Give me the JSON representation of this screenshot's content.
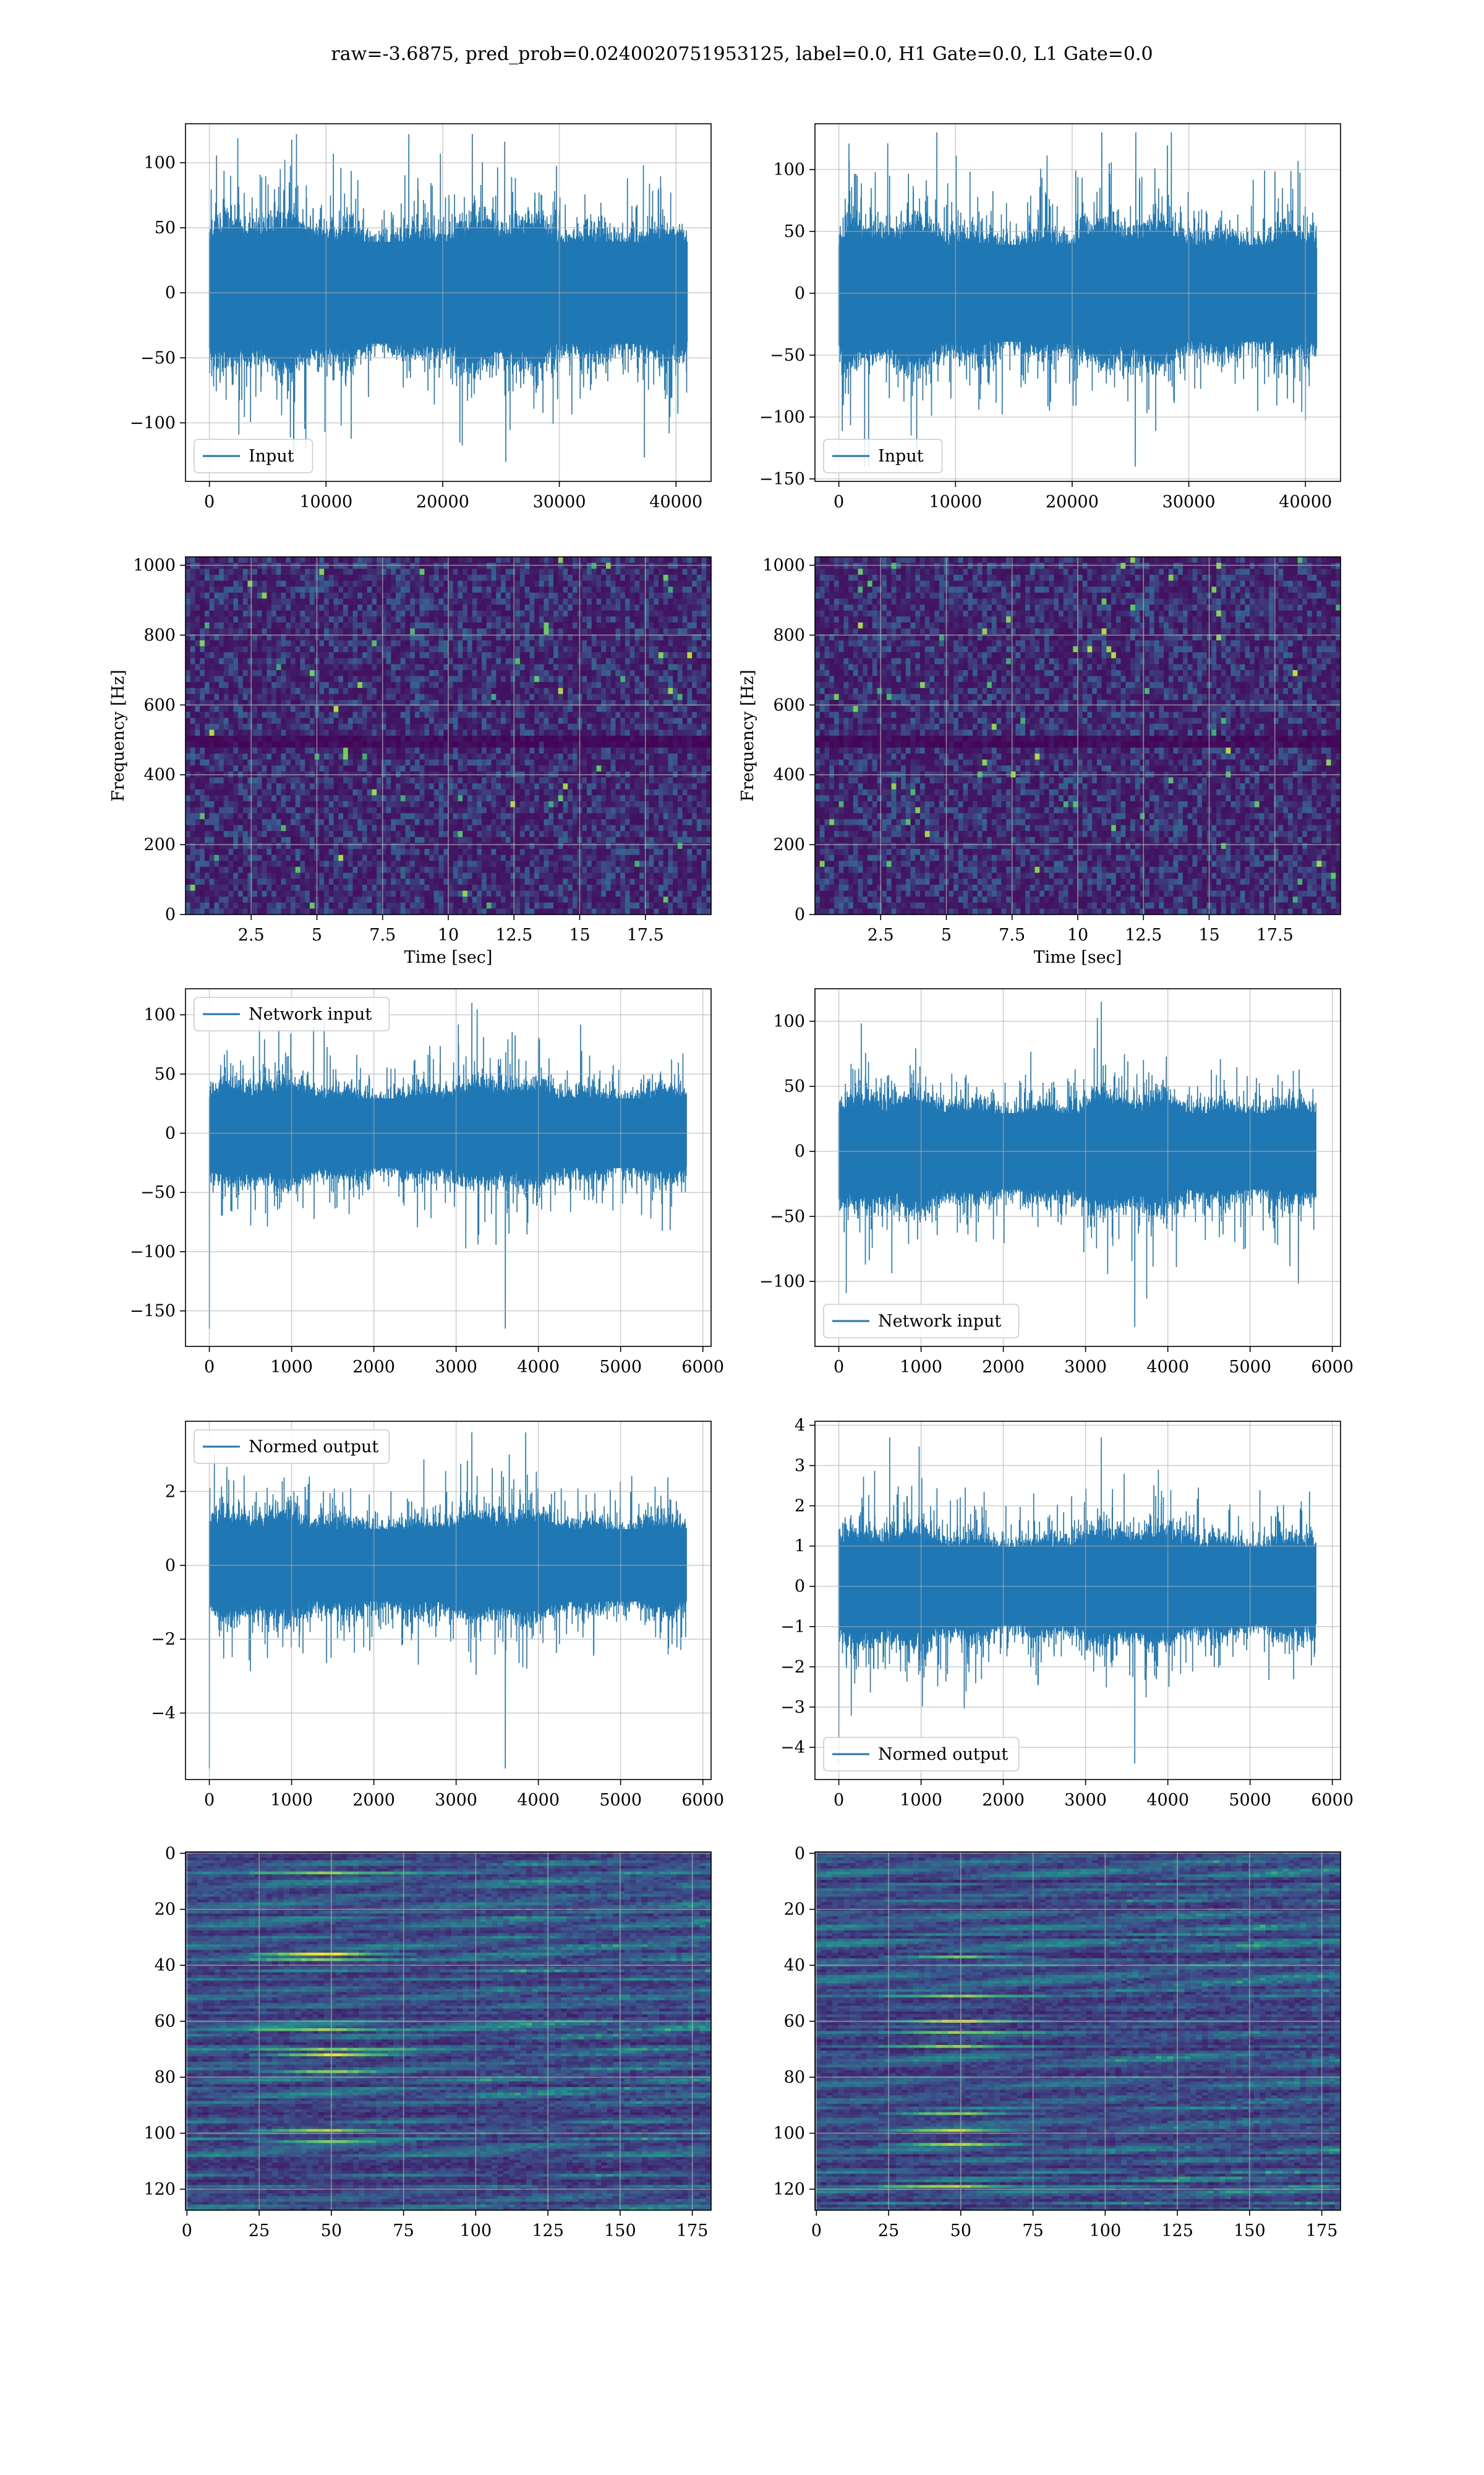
{
  "figure": {
    "title": "raw=-3.6875, pred_prob=0.0240020751953125, label=0.0, H1 Gate=0.0, L1 Gate=0.0"
  },
  "colors": {
    "line": "#1f77b4",
    "grid": "#b0b0b0",
    "viridis": [
      "#440154",
      "#3b528b",
      "#21918c",
      "#5ec962",
      "#fde725"
    ]
  },
  "chart_data": [
    {
      "id": "h1-input",
      "type": "line",
      "panel": {
        "row": 0,
        "col": 0
      },
      "title": "",
      "xlabel": "",
      "ylabel": "",
      "xlim": [
        -2048,
        43008
      ],
      "ylim": [
        -145,
        130
      ],
      "xticks": [
        0,
        10000,
        20000,
        30000,
        40000
      ],
      "yticks": [
        -100,
        -50,
        0,
        50,
        100
      ],
      "series": [
        {
          "name": "Input",
          "n_points": 40960,
          "center": 0,
          "band": 40,
          "max": 122,
          "min": -130
        }
      ],
      "legend": {
        "position": "lower-left",
        "entries": [
          "Input"
        ]
      },
      "grid": true
    },
    {
      "id": "l1-input",
      "type": "line",
      "panel": {
        "row": 0,
        "col": 1
      },
      "title": "",
      "xlabel": "",
      "ylabel": "",
      "xlim": [
        -2048,
        43008
      ],
      "ylim": [
        -152,
        137
      ],
      "xticks": [
        0,
        10000,
        20000,
        30000,
        40000
      ],
      "yticks": [
        -150,
        -100,
        -50,
        0,
        50,
        100
      ],
      "series": [
        {
          "name": "Input",
          "n_points": 40960,
          "center": 0,
          "band": 40,
          "max": 130,
          "min": -140
        }
      ],
      "legend": {
        "position": "lower-left",
        "entries": [
          "Input"
        ]
      },
      "grid": true
    },
    {
      "id": "h1-spectrogram",
      "type": "heatmap",
      "panel": {
        "row": 1,
        "col": 0
      },
      "xlabel": "Time [sec]",
      "ylabel": "Frequency [Hz]",
      "xlim": [
        0,
        20
      ],
      "ylim": [
        0,
        1024
      ],
      "xticks": [
        2.5,
        5.0,
        7.5,
        10.0,
        12.5,
        15.0,
        17.5
      ],
      "yticks": [
        0,
        200,
        400,
        600,
        800,
        1000
      ],
      "dark_band_hz": 500,
      "grid": true
    },
    {
      "id": "l1-spectrogram",
      "type": "heatmap",
      "panel": {
        "row": 1,
        "col": 1
      },
      "xlabel": "Time [sec]",
      "ylabel": "Frequency [Hz]",
      "xlim": [
        0,
        20
      ],
      "ylim": [
        0,
        1024
      ],
      "xticks": [
        2.5,
        5.0,
        7.5,
        10.0,
        12.5,
        15.0,
        17.5
      ],
      "yticks": [
        0,
        200,
        400,
        600,
        800,
        1000
      ],
      "dark_band_hz": 500,
      "grid": true
    },
    {
      "id": "h1-network-input",
      "type": "line",
      "panel": {
        "row": 2,
        "col": 0
      },
      "xlim": [
        -290,
        6100
      ],
      "ylim": [
        -180,
        122
      ],
      "xticks": [
        0,
        1000,
        2000,
        3000,
        4000,
        5000,
        6000
      ],
      "yticks": [
        -150,
        -100,
        -50,
        0,
        50,
        100
      ],
      "series": [
        {
          "name": "Network input",
          "n_points": 5800,
          "center": 0,
          "band": 30,
          "max": 110,
          "min": -165
        }
      ],
      "legend": {
        "position": "upper-left",
        "entries": [
          "Network input"
        ]
      },
      "grid": true
    },
    {
      "id": "l1-network-input",
      "type": "line",
      "panel": {
        "row": 2,
        "col": 1
      },
      "xlim": [
        -290,
        6100
      ],
      "ylim": [
        -150,
        125
      ],
      "xticks": [
        0,
        1000,
        2000,
        3000,
        4000,
        5000,
        6000
      ],
      "yticks": [
        -100,
        -50,
        0,
        50,
        100
      ],
      "series": [
        {
          "name": "Network input",
          "n_points": 5800,
          "center": 0,
          "band": 30,
          "max": 115,
          "min": -135
        }
      ],
      "legend": {
        "position": "lower-left",
        "entries": [
          "Network input"
        ]
      },
      "grid": true
    },
    {
      "id": "h1-normed-output",
      "type": "line",
      "panel": {
        "row": 3,
        "col": 0
      },
      "xlim": [
        -290,
        6100
      ],
      "ylim": [
        -5.8,
        3.9
      ],
      "xticks": [
        0,
        1000,
        2000,
        3000,
        4000,
        5000,
        6000
      ],
      "yticks": [
        -4,
        -2,
        0,
        2
      ],
      "series": [
        {
          "name": "Normed output",
          "n_points": 5800,
          "center": 0,
          "band": 1.0,
          "max": 3.6,
          "min": -5.5
        }
      ],
      "legend": {
        "position": "upper-left",
        "entries": [
          "Normed output"
        ]
      },
      "grid": true
    },
    {
      "id": "l1-normed-output",
      "type": "line",
      "panel": {
        "row": 3,
        "col": 1
      },
      "xlim": [
        -290,
        6100
      ],
      "ylim": [
        -4.8,
        4.1
      ],
      "xticks": [
        0,
        1000,
        2000,
        3000,
        4000,
        5000,
        6000
      ],
      "yticks": [
        -4,
        -3,
        -2,
        -1,
        0,
        1,
        2,
        3,
        4
      ],
      "series": [
        {
          "name": "Normed output",
          "n_points": 5800,
          "center": 0,
          "band": 1.0,
          "max": 3.7,
          "min": -4.4
        }
      ],
      "legend": {
        "position": "lower-left",
        "entries": [
          "Normed output"
        ]
      },
      "grid": true
    },
    {
      "id": "h1-feature-map",
      "type": "heatmap",
      "panel": {
        "row": 4,
        "col": 0
      },
      "xlim": [
        -0.5,
        181.5
      ],
      "ylim": [
        127.5,
        -0.5
      ],
      "xticks": [
        0,
        25,
        50,
        75,
        100,
        125,
        150,
        175
      ],
      "yticks": [
        0,
        20,
        40,
        60,
        80,
        100,
        120
      ],
      "rows": 128,
      "cols": 182,
      "grid": true
    },
    {
      "id": "l1-feature-map",
      "type": "heatmap",
      "panel": {
        "row": 4,
        "col": 1
      },
      "xlim": [
        -0.5,
        181.5
      ],
      "ylim": [
        127.5,
        -0.5
      ],
      "xticks": [
        0,
        25,
        50,
        75,
        100,
        125,
        150,
        175
      ],
      "yticks": [
        0,
        20,
        40,
        60,
        80,
        100,
        120
      ],
      "rows": 128,
      "cols": 182,
      "grid": true
    }
  ]
}
